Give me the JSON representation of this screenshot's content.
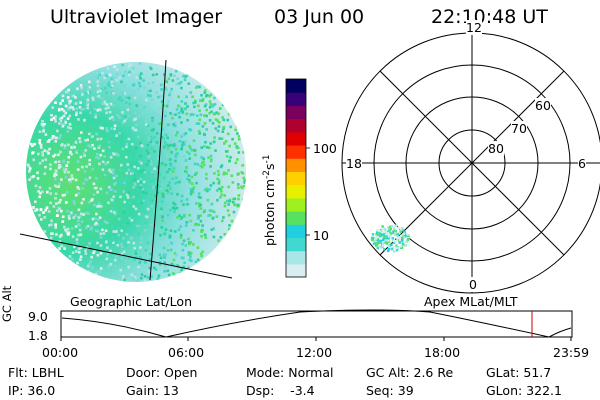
{
  "header": {
    "instrument": "Ultraviolet Imager",
    "date": "03 Jun 00",
    "time": "22:10:48 UT"
  },
  "left_panel": {
    "caption": "Geographic Lat/Lon"
  },
  "colorbar": {
    "unit_label": "photon cm",
    "unit_exp1": "-2",
    "unit_s": "s",
    "unit_exp2": "-1",
    "scale": "log",
    "tick_labels": [
      "100",
      "10"
    ],
    "colors": [
      "#d8eef0",
      "#a9e6e6",
      "#40d8d0",
      "#20d0e0",
      "#58e060",
      "#a0f020",
      "#e8f000",
      "#ffd000",
      "#ff9000",
      "#ff3000",
      "#e00000",
      "#b00030",
      "#7a0060",
      "#3a0078",
      "#000060"
    ]
  },
  "right_panel": {
    "caption": "Apex MLat/MLT",
    "mlt_labels": {
      "top": "12",
      "bottom": "0",
      "left": "18",
      "right": "6"
    },
    "lat_labels": [
      "60",
      "70",
      "80"
    ]
  },
  "timeline": {
    "ylabel": "GC Alt",
    "y_ticks": [
      "9.0",
      "1.8"
    ],
    "x_ticks": [
      "00:00",
      "06:00",
      "12:00",
      "18:00",
      "23:59"
    ],
    "current_time_marker": "22:10:48",
    "marker_color": "#cc0000"
  },
  "info": {
    "flt": "Flt: LBHL",
    "ip": "IP: 36.0",
    "door": "Door: Open",
    "gain": "Gain: 13",
    "mode": "Mode: Normal",
    "dsp": "Dsp:    -3.4",
    "gc_alt": "GC Alt: 2.6 Re",
    "seq": "Seq: 39",
    "glat": "GLat: 51.7",
    "glon": "GLon: 322.1"
  }
}
